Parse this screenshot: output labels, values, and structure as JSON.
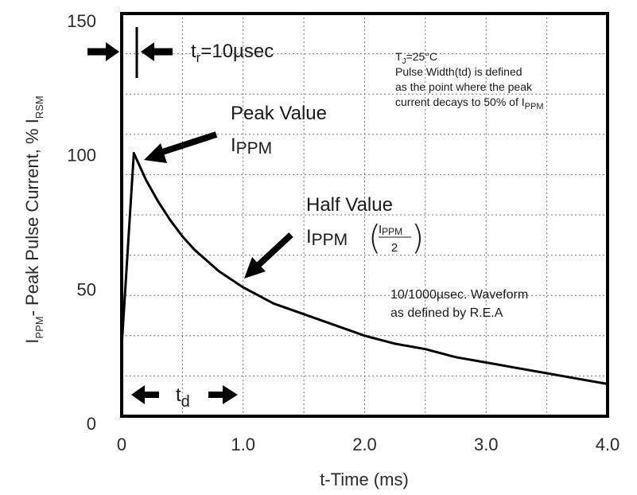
{
  "chart_data": {
    "type": "line",
    "title": "",
    "xlabel": "t-Time (ms)",
    "ylabel_parts": {
      "i": "I",
      "ppm": "PPM",
      "middle": "- Peak Pulse Current, % I",
      "rsm": "RSM"
    },
    "xlim": [
      0,
      4.0
    ],
    "ylim": [
      0,
      150
    ],
    "x_ticks": [
      0,
      1.0,
      2.0,
      3.0,
      4.0
    ],
    "x_tick_labels": [
      "0",
      "1.0",
      "2.0",
      "3.0",
      "4.0"
    ],
    "y_ticks": [
      0,
      50,
      100,
      150
    ],
    "y_tick_labels": [
      "0",
      "50",
      "100",
      "150"
    ],
    "grid": true,
    "series": [
      {
        "name": "10/1000µsec waveform",
        "x": [
          0,
          0.1,
          0.2,
          0.3,
          0.4,
          0.5,
          0.6,
          0.7,
          0.8,
          0.9,
          1.0,
          1.25,
          1.5,
          1.75,
          2.0,
          2.25,
          2.5,
          2.75,
          3.0,
          3.25,
          3.5,
          3.75,
          4.0
        ],
        "values": [
          26,
          98,
          88,
          80,
          73,
          67,
          62,
          58,
          54,
          51,
          48,
          42,
          38,
          34,
          30,
          27,
          25,
          22,
          20,
          18,
          16,
          14,
          12
        ]
      }
    ],
    "annotations": {
      "tr": {
        "t": "t",
        "sub": "r",
        "rest": "=10µsec"
      },
      "conditions": {
        "tj_t": "T",
        "tj_sub": "J",
        "tj_rest": "=25°C",
        "line2": "Pulse Width(td) is defined",
        "line3": "as the point where the peak",
        "line4_pre": "current decays to 50% of I",
        "line4_sub": "PPM"
      },
      "peak": {
        "title": "Peak Value",
        "i": "I",
        "sub": "PPM",
        "at_x": 0.1,
        "at_y": 98
      },
      "half": {
        "title": "Half Value",
        "i": "I",
        "sub": "PPM",
        "frac_num_i": "I",
        "frac_num_sub": "PPM",
        "frac_den": "2",
        "at_x": 1.0,
        "at_y": 50
      },
      "waveform": {
        "line1": "10/1000µsec. Waveform",
        "line2": "as defined by R.E.A"
      },
      "td": {
        "t": "t",
        "sub": "d",
        "x_start": 0,
        "x_end": 1.0
      }
    }
  }
}
